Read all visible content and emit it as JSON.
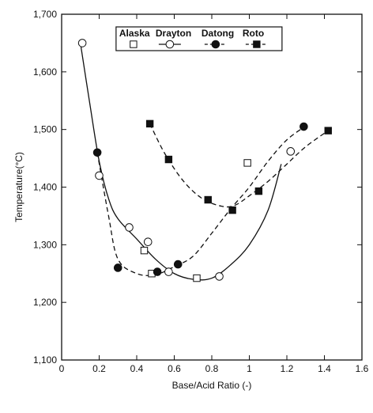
{
  "chart_data": {
    "type": "scatter",
    "title": "",
    "xlabel": "Base/Acid Ratio (-)",
    "ylabel": "Temperature(°C)",
    "xlim": [
      0,
      1.6
    ],
    "ylim": [
      1100,
      1700
    ],
    "x_ticks": [
      0,
      0.2,
      0.4,
      0.6,
      0.8,
      1,
      1.2,
      1.4,
      1.6
    ],
    "x_tick_labels": [
      "0",
      "0.2",
      "0.4",
      "0.6",
      "0.8",
      "1",
      "1.2",
      "1.4",
      "1.6"
    ],
    "y_ticks": [
      1100,
      1200,
      1300,
      1400,
      1500,
      1600,
      1700
    ],
    "y_tick_labels": [
      "1,100",
      "1,200",
      "1,300",
      "1,400",
      "1,500",
      "1,600",
      "1,700"
    ],
    "legend_position": "top-center",
    "grid": false,
    "series": [
      {
        "name": "Alaska",
        "marker": "open-square",
        "line": "none",
        "points": [
          [
            0.44,
            1290
          ],
          [
            0.48,
            1250
          ],
          [
            0.72,
            1242
          ],
          [
            0.99,
            1442
          ]
        ]
      },
      {
        "name": "Drayton",
        "marker": "open-circle",
        "line": "solid",
        "points": [
          [
            0.11,
            1650
          ],
          [
            0.2,
            1420
          ],
          [
            0.36,
            1330
          ],
          [
            0.46,
            1305
          ],
          [
            0.57,
            1253
          ],
          [
            0.84,
            1245
          ],
          [
            1.22,
            1462
          ]
        ],
        "curve": [
          [
            0.1,
            1650
          ],
          [
            0.15,
            1545
          ],
          [
            0.2,
            1445
          ],
          [
            0.25,
            1380
          ],
          [
            0.3,
            1345
          ],
          [
            0.4,
            1310
          ],
          [
            0.5,
            1275
          ],
          [
            0.6,
            1250
          ],
          [
            0.7,
            1240
          ],
          [
            0.8,
            1242
          ],
          [
            0.9,
            1265
          ],
          [
            1.0,
            1300
          ],
          [
            1.1,
            1360
          ],
          [
            1.17,
            1440
          ]
        ]
      },
      {
        "name": "Datong",
        "marker": "filled-circle",
        "line": "dashed",
        "points": [
          [
            0.19,
            1460
          ],
          [
            0.3,
            1260
          ],
          [
            0.51,
            1253
          ],
          [
            0.62,
            1266
          ],
          [
            1.29,
            1505
          ]
        ],
        "curve": [
          [
            0.19,
            1460
          ],
          [
            0.25,
            1350
          ],
          [
            0.3,
            1275
          ],
          [
            0.4,
            1250
          ],
          [
            0.5,
            1248
          ],
          [
            0.6,
            1262
          ],
          [
            0.7,
            1280
          ],
          [
            0.8,
            1320
          ],
          [
            0.9,
            1362
          ],
          [
            1.0,
            1400
          ],
          [
            1.1,
            1445
          ],
          [
            1.2,
            1482
          ],
          [
            1.3,
            1506
          ]
        ]
      },
      {
        "name": "Roto",
        "marker": "filled-square",
        "line": "dashed",
        "points": [
          [
            0.47,
            1510
          ],
          [
            0.57,
            1448
          ],
          [
            0.78,
            1378
          ],
          [
            0.91,
            1360
          ],
          [
            1.05,
            1393
          ],
          [
            1.42,
            1498
          ]
        ],
        "curve": [
          [
            0.47,
            1510
          ],
          [
            0.55,
            1458
          ],
          [
            0.65,
            1410
          ],
          [
            0.75,
            1380
          ],
          [
            0.85,
            1367
          ],
          [
            0.92,
            1368
          ],
          [
            1.0,
            1385
          ],
          [
            1.1,
            1410
          ],
          [
            1.2,
            1440
          ],
          [
            1.3,
            1470
          ],
          [
            1.42,
            1498
          ]
        ]
      }
    ]
  }
}
